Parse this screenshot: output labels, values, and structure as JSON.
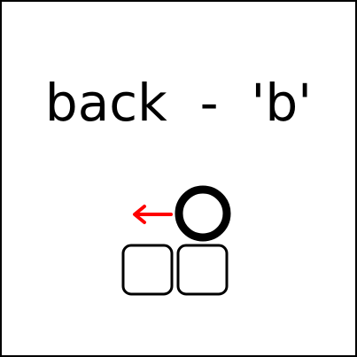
{
  "caption": {
    "text": "back  -  'b'"
  },
  "icon": {
    "arrow": "left-arrow-icon",
    "ball": "circle-icon",
    "keys": [
      "key-left-icon",
      "key-right-icon"
    ]
  },
  "colors": {
    "arrow": "#ff0000",
    "ink": "#000000",
    "background": "#ffffff"
  }
}
